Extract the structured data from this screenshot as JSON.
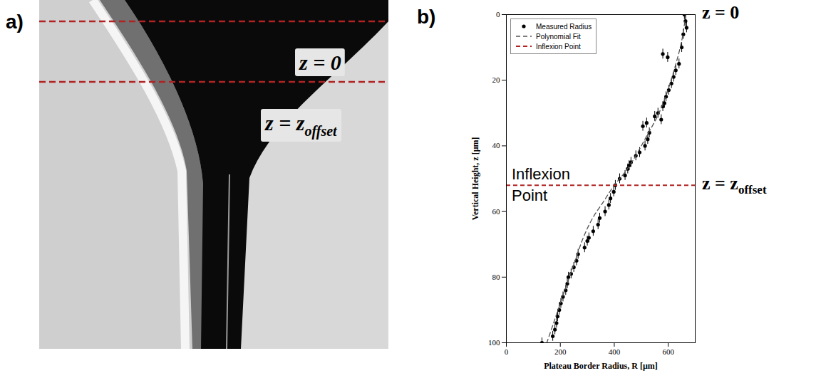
{
  "panel_a": {
    "letter": "a)",
    "labels": [
      {
        "text": "z = 0"
      },
      {
        "text": "z = z",
        "subscript": "offset"
      }
    ]
  },
  "chart_data": {
    "type": "scatter",
    "panel_label": "b)",
    "xlabel": "Plateau Border Radius, R [µm]",
    "ylabel": "Vertical Height, z [µm]",
    "xlim": [
      0,
      700
    ],
    "xticks": [
      0,
      200,
      400,
      600
    ],
    "ylim": [
      100,
      0
    ],
    "yticks": [
      0,
      20,
      40,
      60,
      80,
      100
    ],
    "grid": false,
    "legend": "top-left",
    "series": [
      {
        "name": "Measured Radius",
        "type": "scatter",
        "color": "#000000",
        "marker": "circle",
        "x": [
          660,
          664,
          668,
          656,
          650,
          580,
          598,
          640,
          628,
          620,
          612,
          602,
          592,
          586,
          580,
          562,
          550,
          574,
          520,
          506,
          530,
          524,
          514,
          494,
          480,
          462,
          455,
          450,
          440,
          420,
          404,
          398,
          386,
          380,
          366,
          346,
          340,
          322,
          306,
          300,
          290,
          266,
          260,
          250,
          240,
          230,
          226,
          220,
          210,
          202,
          196,
          190,
          186,
          180,
          172,
          132
        ],
        "y": [
          0,
          2,
          4,
          6,
          10,
          12,
          13,
          15,
          17,
          19,
          21,
          23,
          25,
          27,
          28,
          30,
          31,
          32,
          33,
          34,
          36,
          38,
          40,
          42,
          43,
          45,
          46,
          47,
          49,
          50,
          52,
          54,
          56,
          58,
          60,
          62,
          64,
          66,
          68,
          69,
          71,
          73,
          75,
          77,
          79,
          80,
          82,
          84,
          86,
          88,
          90,
          92,
          94,
          96,
          98,
          100
        ],
        "y_errors": [
          1.5,
          1.5,
          1.5,
          1.5,
          1.5,
          1.5,
          1.5,
          1.5,
          1.5,
          1.5,
          1.5,
          1.5,
          1.5,
          1.5,
          1.5,
          1.5,
          1.5,
          1.5,
          1.5,
          1.5,
          1.5,
          1.5,
          1.5,
          1.5,
          1.5,
          1.5,
          1.5,
          1.5,
          1.5,
          1.5,
          1.5,
          1.5,
          1.5,
          1.5,
          1.5,
          1.5,
          1.5,
          1.5,
          1.5,
          1.5,
          1.5,
          1.5,
          1.5,
          1.5,
          1.5,
          1.5,
          1.5,
          1.5,
          1.5,
          1.5,
          1.5,
          1.5,
          1.5,
          1.5,
          1.5,
          1.5
        ]
      },
      {
        "name": "Polynomial Fit",
        "type": "line",
        "color": "#555555",
        "line_style": "dashed",
        "x": [
          665,
          650,
          625,
          595,
          560,
          520,
          480,
          440,
          400,
          360,
          320,
          285,
          255,
          225,
          200,
          175,
          150
        ],
        "y": [
          0,
          8,
          16,
          24,
          31,
          37,
          43,
          48,
          52,
          57,
          62,
          68,
          75,
          82,
          88,
          94,
          100
        ]
      },
      {
        "name": "Inflexion Point",
        "type": "hline",
        "color": "#b22222",
        "line_style": "dashed",
        "y": 52
      }
    ],
    "annotations": {
      "line_label": "Inflexion Point",
      "right_labels": [
        {
          "text": "z = 0",
          "y": 0
        },
        {
          "text": "z = z",
          "subscript": "offset",
          "y": 52
        }
      ]
    }
  }
}
